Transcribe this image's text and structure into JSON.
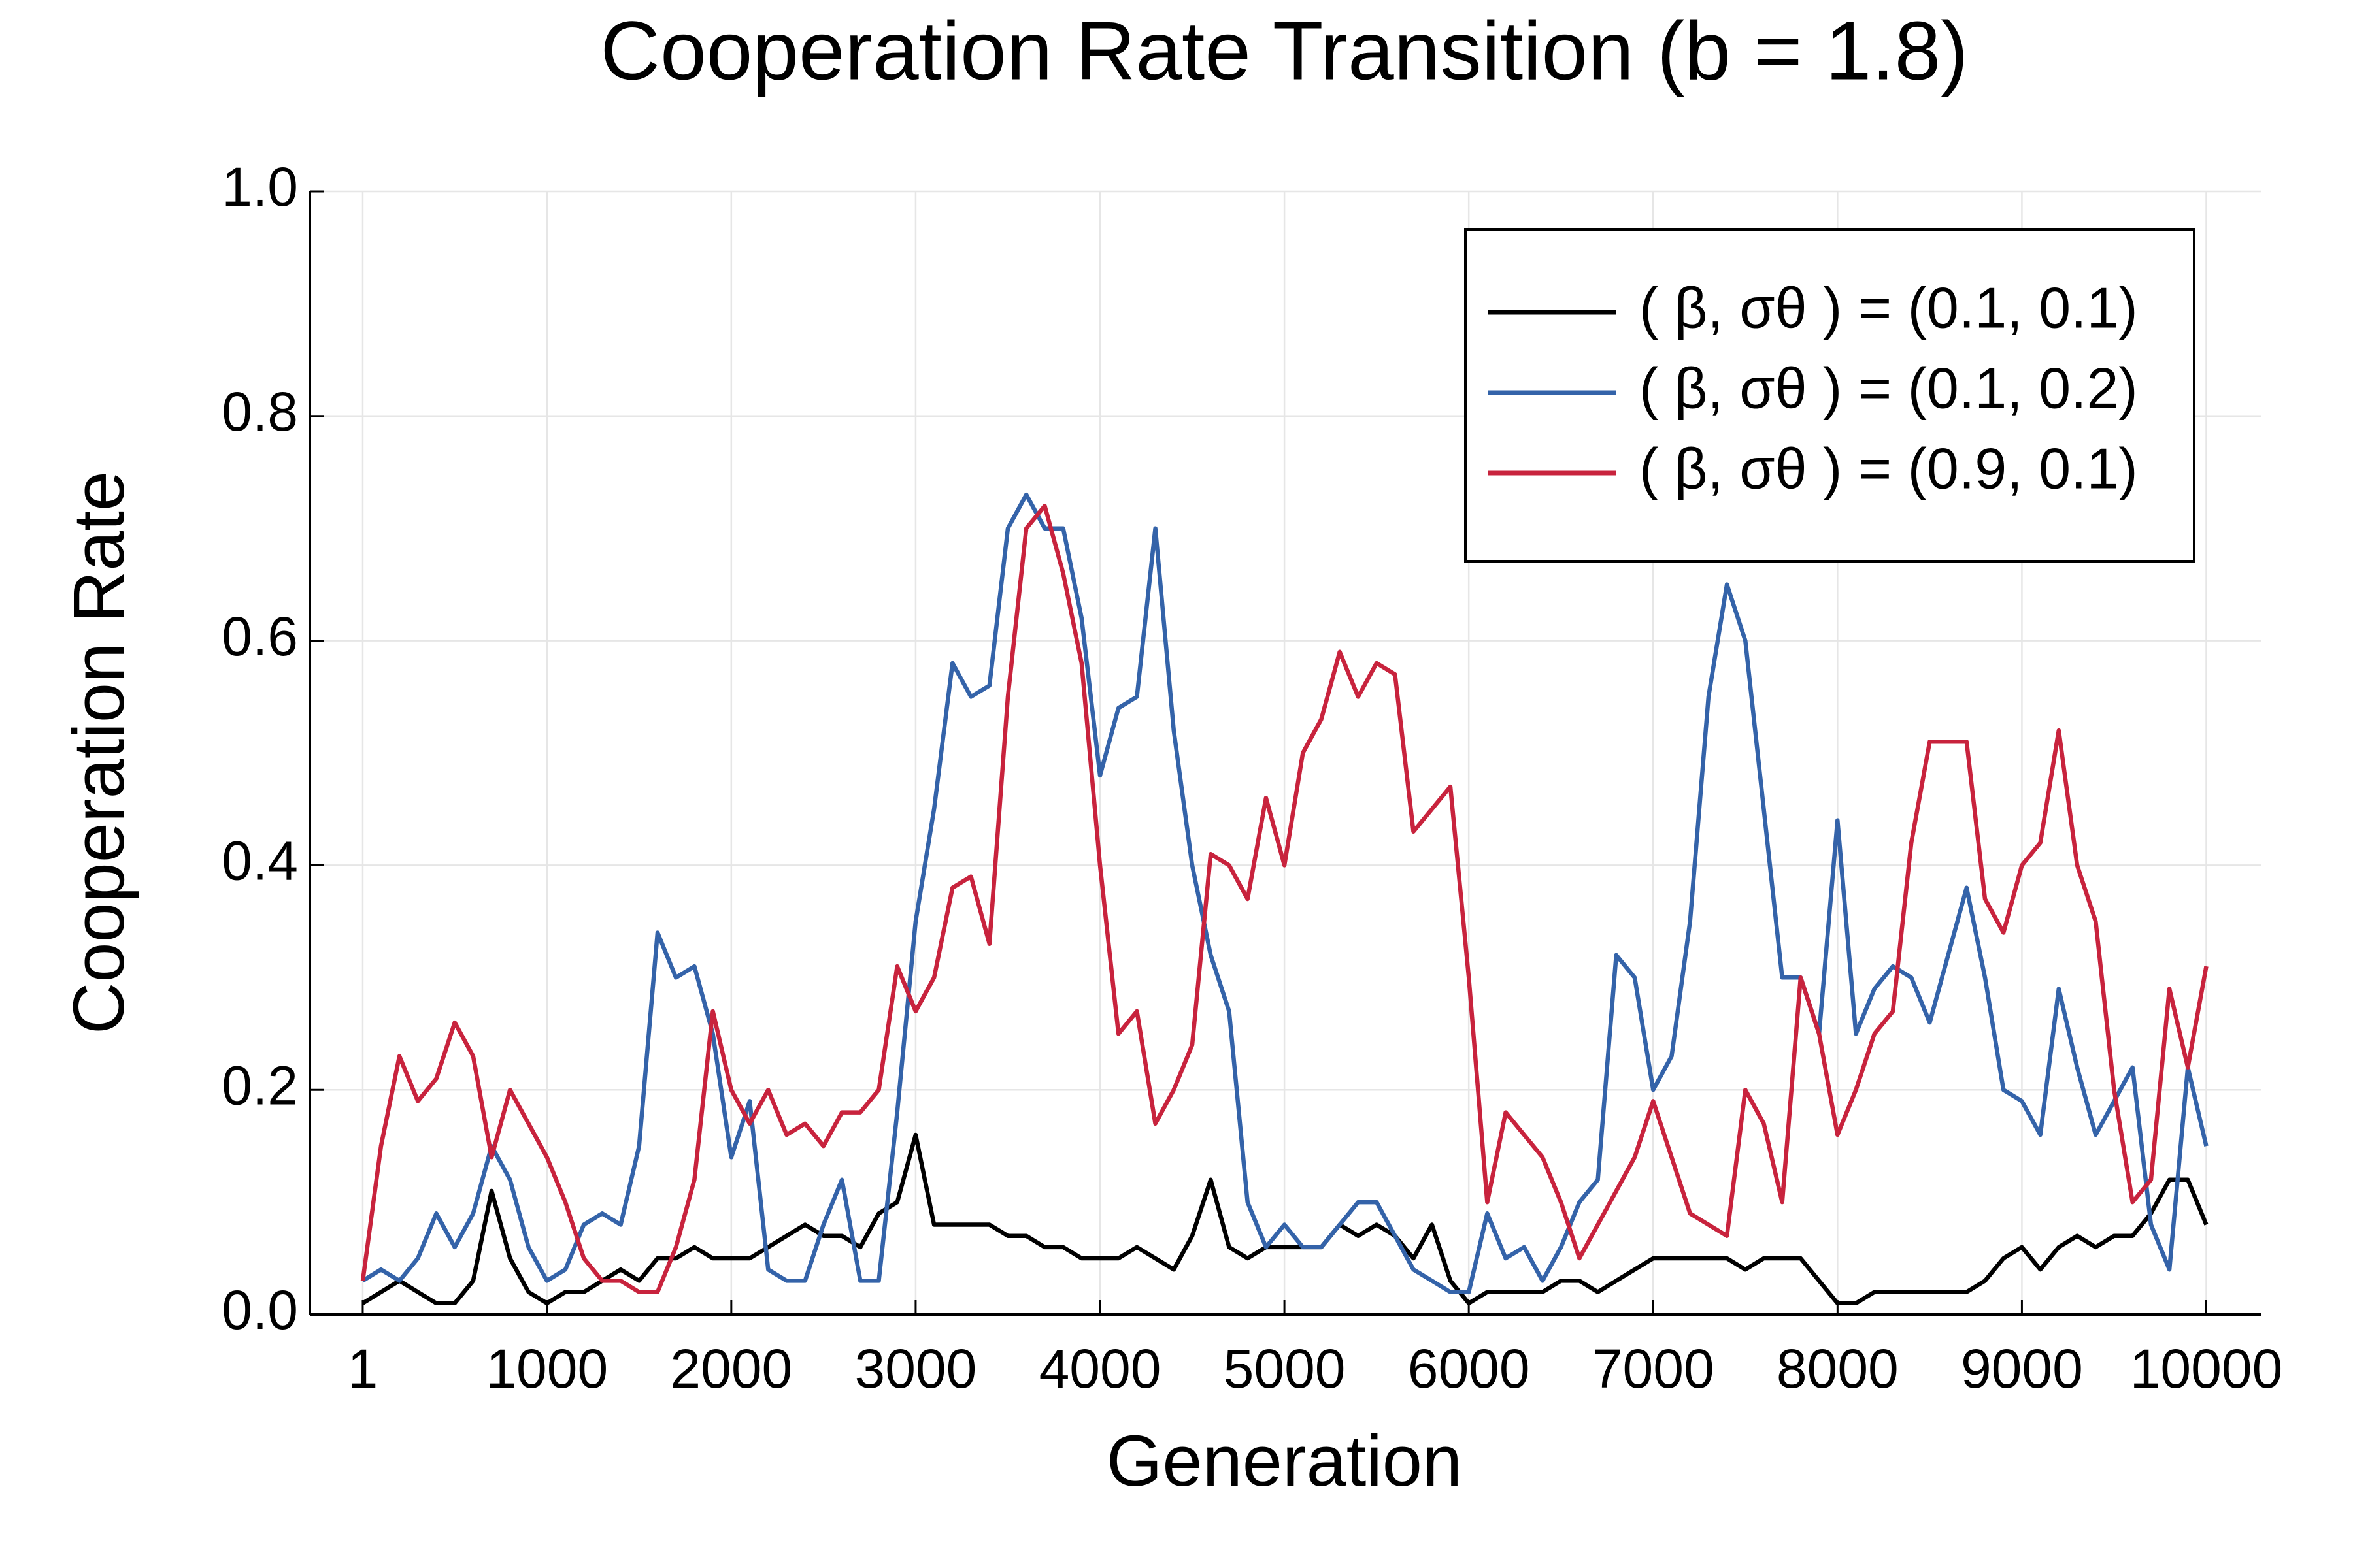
{
  "chart_data": {
    "type": "line",
    "title": "Cooperation Rate Transition (b = 1.8)",
    "x_label": "Generation",
    "y_label": "Cooperation Rate",
    "x": [
      1,
      100,
      200,
      300,
      400,
      500,
      600,
      700,
      800,
      900,
      1000,
      1100,
      1200,
      1300,
      1400,
      1500,
      1600,
      1700,
      1800,
      1900,
      2000,
      2100,
      2200,
      2300,
      2400,
      2500,
      2600,
      2700,
      2800,
      2900,
      3000,
      3100,
      3200,
      3300,
      3400,
      3500,
      3600,
      3700,
      3800,
      3900,
      4000,
      4100,
      4200,
      4300,
      4400,
      4500,
      4600,
      4700,
      4800,
      4900,
      5000,
      5100,
      5200,
      5300,
      5400,
      5500,
      5600,
      5700,
      5800,
      5900,
      6000,
      6100,
      6200,
      6300,
      6400,
      6500,
      6600,
      6700,
      6800,
      6900,
      7000,
      7100,
      7200,
      7300,
      7400,
      7500,
      7600,
      7700,
      7800,
      7900,
      8000,
      8100,
      8200,
      8300,
      8400,
      8500,
      8600,
      8700,
      8800,
      8900,
      9000,
      9100,
      9200,
      9300,
      9400,
      9500,
      9600,
      9700,
      9800,
      9900,
      10000
    ],
    "series": [
      {
        "name": "( β, σθ ) = (0.1, 0.1)",
        "color": "#000000",
        "values": [
          0.01,
          0.02,
          0.03,
          0.02,
          0.01,
          0.01,
          0.03,
          0.11,
          0.05,
          0.02,
          0.01,
          0.02,
          0.02,
          0.03,
          0.04,
          0.03,
          0.05,
          0.05,
          0.06,
          0.05,
          0.05,
          0.05,
          0.06,
          0.07,
          0.08,
          0.07,
          0.07,
          0.06,
          0.09,
          0.1,
          0.16,
          0.08,
          0.08,
          0.08,
          0.08,
          0.07,
          0.07,
          0.06,
          0.06,
          0.05,
          0.05,
          0.05,
          0.06,
          0.05,
          0.04,
          0.07,
          0.12,
          0.06,
          0.05,
          0.06,
          0.06,
          0.06,
          0.06,
          0.08,
          0.07,
          0.08,
          0.07,
          0.05,
          0.08,
          0.03,
          0.01,
          0.02,
          0.02,
          0.02,
          0.02,
          0.03,
          0.03,
          0.02,
          0.03,
          0.04,
          0.05,
          0.05,
          0.05,
          0.05,
          0.05,
          0.04,
          0.05,
          0.05,
          0.05,
          0.03,
          0.01,
          0.01,
          0.02,
          0.02,
          0.02,
          0.02,
          0.02,
          0.02,
          0.03,
          0.05,
          0.06,
          0.04,
          0.06,
          0.07,
          0.06,
          0.07,
          0.07,
          0.09,
          0.12,
          0.12,
          0.08
        ]
      },
      {
        "name": "( β, σθ ) = (0.1, 0.2)",
        "color": "#3463a9",
        "values": [
          0.03,
          0.04,
          0.03,
          0.05,
          0.09,
          0.06,
          0.09,
          0.15,
          0.12,
          0.06,
          0.03,
          0.04,
          0.08,
          0.09,
          0.08,
          0.15,
          0.34,
          0.3,
          0.31,
          0.25,
          0.14,
          0.19,
          0.04,
          0.03,
          0.03,
          0.08,
          0.12,
          0.03,
          0.03,
          0.18,
          0.35,
          0.45,
          0.58,
          0.55,
          0.56,
          0.7,
          0.73,
          0.7,
          0.7,
          0.62,
          0.48,
          0.54,
          0.55,
          0.7,
          0.52,
          0.4,
          0.32,
          0.27,
          0.1,
          0.06,
          0.08,
          0.06,
          0.06,
          0.08,
          0.1,
          0.1,
          0.07,
          0.04,
          0.03,
          0.02,
          0.02,
          0.09,
          0.05,
          0.06,
          0.03,
          0.06,
          0.1,
          0.12,
          0.32,
          0.3,
          0.2,
          0.23,
          0.35,
          0.55,
          0.65,
          0.6,
          0.45,
          0.3,
          0.3,
          0.25,
          0.44,
          0.25,
          0.29,
          0.31,
          0.3,
          0.26,
          0.32,
          0.38,
          0.3,
          0.2,
          0.19,
          0.16,
          0.29,
          0.22,
          0.16,
          0.19,
          0.22,
          0.08,
          0.04,
          0.22,
          0.15
        ]
      },
      {
        "name": "( β, σθ ) = (0.9, 0.1)",
        "color": "#c8233d",
        "values": [
          0.03,
          0.15,
          0.23,
          0.19,
          0.21,
          0.26,
          0.23,
          0.14,
          0.2,
          0.17,
          0.14,
          0.1,
          0.05,
          0.03,
          0.03,
          0.02,
          0.02,
          0.06,
          0.12,
          0.27,
          0.2,
          0.17,
          0.2,
          0.16,
          0.17,
          0.15,
          0.18,
          0.18,
          0.2,
          0.31,
          0.27,
          0.3,
          0.38,
          0.39,
          0.33,
          0.55,
          0.7,
          0.72,
          0.66,
          0.58,
          0.4,
          0.25,
          0.27,
          0.17,
          0.2,
          0.24,
          0.41,
          0.4,
          0.37,
          0.46,
          0.4,
          0.5,
          0.53,
          0.59,
          0.55,
          0.58,
          0.57,
          0.43,
          0.45,
          0.47,
          0.3,
          0.1,
          0.18,
          0.16,
          0.14,
          0.1,
          0.05,
          0.08,
          0.11,
          0.14,
          0.19,
          0.14,
          0.09,
          0.08,
          0.07,
          0.2,
          0.17,
          0.1,
          0.3,
          0.25,
          0.16,
          0.2,
          0.25,
          0.27,
          0.42,
          0.51,
          0.51,
          0.51,
          0.37,
          0.34,
          0.4,
          0.42,
          0.52,
          0.4,
          0.35,
          0.2,
          0.1,
          0.12,
          0.29,
          0.22,
          0.31
        ]
      }
    ],
    "xlim": [
      -286,
      10296
    ],
    "xticks": [
      1,
      1000,
      2000,
      3000,
      4000,
      5000,
      6000,
      7000,
      8000,
      9000,
      10000
    ],
    "ylim": [
      0,
      1
    ],
    "yticks": [
      {
        "value": 0,
        "label": "0.0"
      },
      0.2,
      0.4,
      0.6,
      0.8,
      {
        "value": 1,
        "label": "1.0"
      }
    ],
    "grid": true,
    "legend": "upper right"
  }
}
